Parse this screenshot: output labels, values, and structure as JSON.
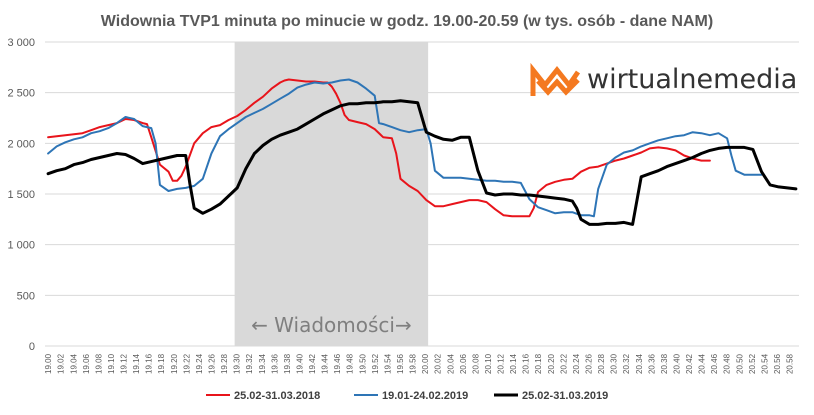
{
  "chart_data": {
    "type": "line",
    "title": "Widownia TVP1 minuta po minucie w godz. 19.00-20.59 (w tys. osób - dane NAM)",
    "xlabel": "",
    "ylabel": "",
    "ylim": [
      0,
      3000
    ],
    "yticks": [
      0,
      500,
      1000,
      1500,
      2000,
      2500,
      3000
    ],
    "ytick_labels": [
      "0",
      "500",
      "1 000",
      "1 500",
      "2 000",
      "2 500",
      "3 000"
    ],
    "x_tick_labels": [
      "19.00",
      "19.02",
      "19.04",
      "19.06",
      "19.08",
      "19.10",
      "19.12",
      "19.14",
      "19.16",
      "19.18",
      "19.20",
      "19.22",
      "19.24",
      "19.26",
      "19.28",
      "19.30",
      "19.32",
      "19.34",
      "19.36",
      "19.38",
      "19.40",
      "19.42",
      "19.44",
      "19.46",
      "19.48",
      "19.50",
      "19.52",
      "19.54",
      "19.56",
      "19.58",
      "20.00",
      "20.02",
      "20.04",
      "20.06",
      "20.08",
      "20.10",
      "20.12",
      "20.14",
      "20.16",
      "20.18",
      "20.20",
      "20.22",
      "20.24",
      "20.26",
      "20.28",
      "20.30",
      "20.32",
      "20.34",
      "20.36",
      "20.38",
      "20.40",
      "20.42",
      "20.44",
      "20.46",
      "20.48",
      "20.50",
      "20.52",
      "20.54",
      "20.56",
      "20.58"
    ],
    "grid": true,
    "legend_position": "bottom",
    "shaded_region": {
      "label": "← Wiadomości→",
      "x_start": "19.30",
      "x_end": "20.00",
      "color": "#d9d9d9"
    },
    "series": [
      {
        "name": "25.02-31.03.2018",
        "color": "#e8141b",
        "line_width": 2,
        "points": [
          [
            0,
            2060
          ],
          [
            2,
            2070
          ],
          [
            4,
            2080
          ],
          [
            6,
            2090
          ],
          [
            8,
            2100
          ],
          [
            10,
            2130
          ],
          [
            12,
            2160
          ],
          [
            14,
            2180
          ],
          [
            16,
            2200
          ],
          [
            18,
            2240
          ],
          [
            20,
            2230
          ],
          [
            22,
            2200
          ],
          [
            23,
            2190
          ],
          [
            24,
            2060
          ],
          [
            26,
            1790
          ],
          [
            28,
            1720
          ],
          [
            29,
            1630
          ],
          [
            30,
            1630
          ],
          [
            31,
            1680
          ],
          [
            32,
            1770
          ],
          [
            34,
            2000
          ],
          [
            36,
            2100
          ],
          [
            38,
            2160
          ],
          [
            40,
            2180
          ],
          [
            42,
            2230
          ],
          [
            44,
            2270
          ],
          [
            46,
            2330
          ],
          [
            48,
            2400
          ],
          [
            50,
            2460
          ],
          [
            52,
            2540
          ],
          [
            54,
            2600
          ],
          [
            55,
            2620
          ],
          [
            56,
            2630
          ],
          [
            58,
            2620
          ],
          [
            60,
            2610
          ],
          [
            62,
            2610
          ],
          [
            64,
            2600
          ],
          [
            65,
            2600
          ],
          [
            66,
            2560
          ],
          [
            67,
            2490
          ],
          [
            68,
            2400
          ],
          [
            69,
            2280
          ],
          [
            70,
            2230
          ],
          [
            72,
            2210
          ],
          [
            74,
            2190
          ],
          [
            76,
            2140
          ],
          [
            78,
            2060
          ],
          [
            80,
            2050
          ],
          [
            81,
            1900
          ],
          [
            82,
            1650
          ],
          [
            84,
            1580
          ],
          [
            86,
            1530
          ],
          [
            88,
            1440
          ],
          [
            90,
            1380
          ],
          [
            92,
            1380
          ],
          [
            94,
            1400
          ],
          [
            96,
            1420
          ],
          [
            98,
            1440
          ],
          [
            100,
            1440
          ],
          [
            102,
            1420
          ],
          [
            104,
            1350
          ],
          [
            106,
            1290
          ],
          [
            108,
            1280
          ],
          [
            110,
            1280
          ],
          [
            112,
            1280
          ],
          [
            113,
            1360
          ],
          [
            114,
            1520
          ],
          [
            116,
            1590
          ],
          [
            118,
            1620
          ],
          [
            120,
            1640
          ],
          [
            122,
            1650
          ],
          [
            124,
            1720
          ],
          [
            126,
            1760
          ],
          [
            128,
            1770
          ],
          [
            130,
            1800
          ],
          [
            132,
            1830
          ],
          [
            134,
            1850
          ],
          [
            136,
            1880
          ],
          [
            138,
            1910
          ],
          [
            140,
            1950
          ],
          [
            142,
            1960
          ],
          [
            144,
            1950
          ],
          [
            146,
            1930
          ],
          [
            148,
            1880
          ],
          [
            150,
            1850
          ],
          [
            152,
            1830
          ],
          [
            154,
            1830
          ]
        ]
      },
      {
        "name": "19.01-24.02.2019",
        "color": "#2e75b6",
        "line_width": 2,
        "points": [
          [
            0,
            1900
          ],
          [
            2,
            1970
          ],
          [
            4,
            2010
          ],
          [
            6,
            2040
          ],
          [
            8,
            2060
          ],
          [
            10,
            2100
          ],
          [
            12,
            2120
          ],
          [
            14,
            2150
          ],
          [
            16,
            2200
          ],
          [
            18,
            2260
          ],
          [
            20,
            2240
          ],
          [
            22,
            2170
          ],
          [
            23,
            2160
          ],
          [
            24,
            2150
          ],
          [
            25,
            2000
          ],
          [
            26,
            1590
          ],
          [
            28,
            1530
          ],
          [
            30,
            1550
          ],
          [
            32,
            1560
          ],
          [
            34,
            1580
          ],
          [
            36,
            1650
          ],
          [
            38,
            1900
          ],
          [
            40,
            2070
          ],
          [
            42,
            2140
          ],
          [
            44,
            2200
          ],
          [
            46,
            2260
          ],
          [
            48,
            2300
          ],
          [
            50,
            2340
          ],
          [
            52,
            2390
          ],
          [
            54,
            2440
          ],
          [
            56,
            2490
          ],
          [
            58,
            2550
          ],
          [
            60,
            2580
          ],
          [
            62,
            2600
          ],
          [
            64,
            2590
          ],
          [
            66,
            2600
          ],
          [
            68,
            2620
          ],
          [
            70,
            2630
          ],
          [
            72,
            2600
          ],
          [
            74,
            2540
          ],
          [
            76,
            2470
          ],
          [
            77,
            2200
          ],
          [
            78,
            2190
          ],
          [
            80,
            2160
          ],
          [
            82,
            2130
          ],
          [
            84,
            2110
          ],
          [
            86,
            2130
          ],
          [
            88,
            2140
          ],
          [
            89,
            2000
          ],
          [
            90,
            1730
          ],
          [
            92,
            1660
          ],
          [
            94,
            1660
          ],
          [
            96,
            1660
          ],
          [
            98,
            1650
          ],
          [
            100,
            1640
          ],
          [
            102,
            1630
          ],
          [
            104,
            1630
          ],
          [
            106,
            1620
          ],
          [
            108,
            1620
          ],
          [
            110,
            1610
          ],
          [
            112,
            1450
          ],
          [
            114,
            1370
          ],
          [
            116,
            1340
          ],
          [
            118,
            1310
          ],
          [
            120,
            1320
          ],
          [
            122,
            1320
          ],
          [
            124,
            1290
          ],
          [
            126,
            1290
          ],
          [
            127,
            1280
          ],
          [
            128,
            1550
          ],
          [
            130,
            1790
          ],
          [
            132,
            1860
          ],
          [
            134,
            1910
          ],
          [
            136,
            1930
          ],
          [
            138,
            1970
          ],
          [
            140,
            2000
          ],
          [
            142,
            2030
          ],
          [
            144,
            2050
          ],
          [
            146,
            2070
          ],
          [
            148,
            2080
          ],
          [
            150,
            2110
          ],
          [
            152,
            2100
          ],
          [
            154,
            2080
          ],
          [
            156,
            2100
          ],
          [
            158,
            2050
          ],
          [
            159,
            1880
          ],
          [
            160,
            1730
          ],
          [
            162,
            1690
          ],
          [
            164,
            1690
          ],
          [
            166,
            1690
          ]
        ]
      },
      {
        "name": "25.02-31.03.2019",
        "color": "#000000",
        "line_width": 3,
        "points": [
          [
            0,
            1700
          ],
          [
            2,
            1730
          ],
          [
            4,
            1750
          ],
          [
            6,
            1790
          ],
          [
            8,
            1810
          ],
          [
            10,
            1840
          ],
          [
            12,
            1860
          ],
          [
            14,
            1880
          ],
          [
            16,
            1900
          ],
          [
            18,
            1890
          ],
          [
            20,
            1850
          ],
          [
            22,
            1800
          ],
          [
            24,
            1820
          ],
          [
            26,
            1840
          ],
          [
            28,
            1860
          ],
          [
            30,
            1880
          ],
          [
            32,
            1880
          ],
          [
            33,
            1600
          ],
          [
            34,
            1360
          ],
          [
            36,
            1310
          ],
          [
            38,
            1350
          ],
          [
            40,
            1400
          ],
          [
            42,
            1480
          ],
          [
            44,
            1560
          ],
          [
            46,
            1750
          ],
          [
            48,
            1900
          ],
          [
            50,
            1980
          ],
          [
            52,
            2040
          ],
          [
            54,
            2080
          ],
          [
            56,
            2110
          ],
          [
            58,
            2140
          ],
          [
            60,
            2190
          ],
          [
            62,
            2240
          ],
          [
            64,
            2290
          ],
          [
            66,
            2330
          ],
          [
            68,
            2370
          ],
          [
            70,
            2390
          ],
          [
            72,
            2390
          ],
          [
            74,
            2400
          ],
          [
            76,
            2400
          ],
          [
            78,
            2410
          ],
          [
            80,
            2410
          ],
          [
            82,
            2420
          ],
          [
            84,
            2410
          ],
          [
            86,
            2400
          ],
          [
            88,
            2110
          ],
          [
            90,
            2070
          ],
          [
            92,
            2040
          ],
          [
            94,
            2030
          ],
          [
            96,
            2060
          ],
          [
            98,
            2060
          ],
          [
            100,
            1730
          ],
          [
            102,
            1510
          ],
          [
            104,
            1490
          ],
          [
            106,
            1500
          ],
          [
            108,
            1500
          ],
          [
            110,
            1490
          ],
          [
            112,
            1490
          ],
          [
            114,
            1480
          ],
          [
            116,
            1470
          ],
          [
            118,
            1460
          ],
          [
            120,
            1450
          ],
          [
            122,
            1430
          ],
          [
            123,
            1360
          ],
          [
            124,
            1250
          ],
          [
            126,
            1200
          ],
          [
            128,
            1200
          ],
          [
            130,
            1210
          ],
          [
            132,
            1210
          ],
          [
            134,
            1220
          ],
          [
            136,
            1200
          ],
          [
            138,
            1670
          ],
          [
            140,
            1700
          ],
          [
            142,
            1730
          ],
          [
            144,
            1770
          ],
          [
            146,
            1800
          ],
          [
            148,
            1830
          ],
          [
            150,
            1860
          ],
          [
            152,
            1900
          ],
          [
            154,
            1930
          ],
          [
            156,
            1950
          ],
          [
            158,
            1960
          ],
          [
            160,
            1960
          ],
          [
            162,
            1960
          ],
          [
            164,
            1940
          ],
          [
            166,
            1720
          ],
          [
            168,
            1590
          ],
          [
            170,
            1570
          ],
          [
            172,
            1560
          ],
          [
            174,
            1550
          ]
        ]
      }
    ]
  },
  "logo": {
    "text": "wirtualnemedia",
    "mark_color": "#f47920"
  }
}
